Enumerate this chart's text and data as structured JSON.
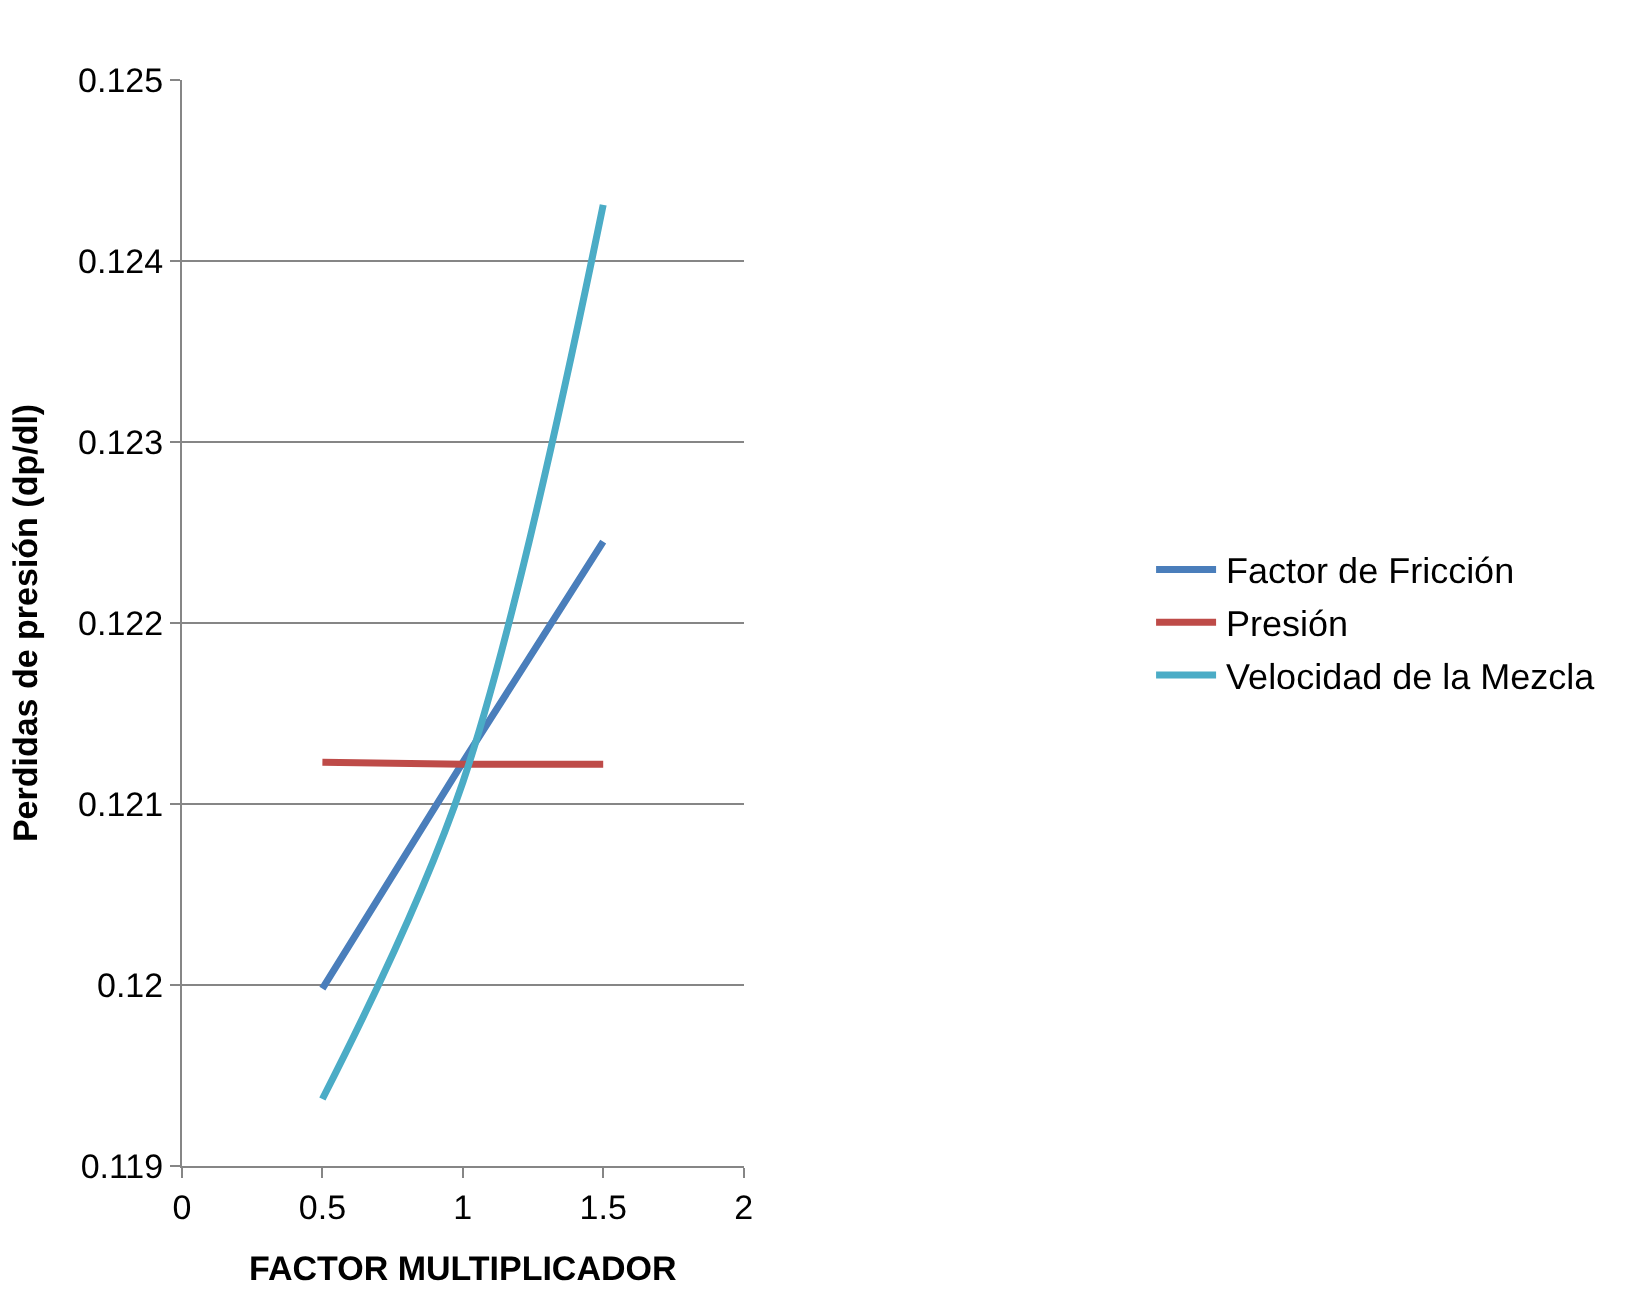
{
  "chart_data": {
    "type": "line",
    "xlabel": "FACTOR MULTIPLICADOR",
    "ylabel": "Perdidas de presión (dp/dl)",
    "x": [
      0.5,
      1,
      1.5
    ],
    "series": [
      {
        "name": "Factor de Fricción",
        "color": "#4a7ebb",
        "values": [
          0.11998,
          0.12123,
          0.12245
        ]
      },
      {
        "name": "Presión",
        "color": "#be4b48",
        "values": [
          0.12123,
          0.12122,
          0.12122
        ]
      },
      {
        "name": "Velocidad de la Mezcla",
        "color": "#4bacc6",
        "values": [
          0.11937,
          0.12112,
          0.12431
        ]
      }
    ],
    "xlim": [
      0,
      2
    ],
    "xticks": [
      0,
      0.5,
      1,
      1.5,
      2
    ],
    "ylim": [
      0.119,
      0.125
    ],
    "yticks": [
      0.119,
      0.12,
      0.121,
      0.122,
      0.123,
      0.124,
      0.125
    ],
    "grid": "y",
    "legend": "right",
    "marker": "none",
    "line_style": "solid"
  }
}
